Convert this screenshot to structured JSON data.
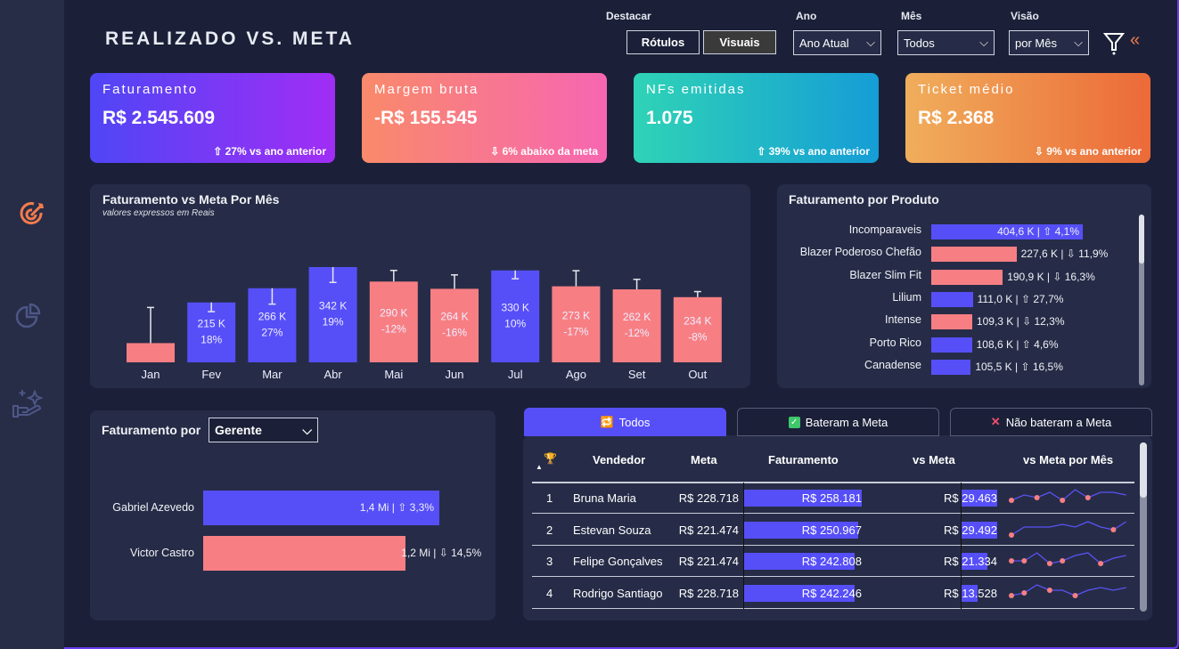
{
  "header": {
    "title": "REALIZADO VS. META"
  },
  "filters": {
    "destacar_label": "Destacar",
    "rotulos": "Rótulos",
    "visuais": "Visuais",
    "ano_label": "Ano",
    "ano_value": "Ano Atual",
    "mes_label": "Mês",
    "mes_value": "Todos",
    "visao_label": "Visão",
    "visao_value": "por Mês"
  },
  "icons": {
    "sidebar": [
      "target-icon",
      "pie-chart-icon",
      "hand-sparkle-icon"
    ],
    "filter": "filter-icon",
    "collapse": "double-chevron-left-icon"
  },
  "kpis": [
    {
      "title": "Faturamento",
      "value": "R$ 2.545.609",
      "sub": "⇧ 27% vs ano anterior",
      "gradient": [
        "#4f46f5",
        "#a12df5"
      ]
    },
    {
      "title": "Margem bruta",
      "value": "-R$ 155.545",
      "sub": "⇩ 6% abaixo da meta",
      "gradient": [
        "#f98a6a",
        "#f766b2"
      ]
    },
    {
      "title": "NFs emitidas",
      "value": "1.075",
      "sub": "⇧ 39% vs ano anterior",
      "gradient": [
        "#2fd3b6",
        "#159dd6"
      ]
    },
    {
      "title": "Ticket médio",
      "value": "R$ 2.368",
      "sub": "⇩ 9% vs ano anterior",
      "gradient": [
        "#f0ae5c",
        "#ec6a38"
      ]
    }
  ],
  "colors": {
    "above": "#564ff8",
    "below": "#f77f84",
    "line": "#5a52f5"
  },
  "chart_data": [
    {
      "type": "bar",
      "title": "Faturamento vs Meta Por Mês",
      "subtitle": "valores expressos em Reais",
      "categories": [
        "Jan",
        "Fev",
        "Mar",
        "Abr",
        "Mai",
        "Jun",
        "Jul",
        "Ago",
        "Set",
        "Out"
      ],
      "values": [
        69,
        215,
        266,
        342,
        290,
        264,
        330,
        273,
        262,
        234
      ],
      "value_labels": [
        "",
        "215 K",
        "266 K",
        "342 K",
        "290 K",
        "264 K",
        "330 K",
        "273 K",
        "262 K",
        "234 K"
      ],
      "pct_labels": [
        "",
        "18%",
        "27%",
        "19%",
        "-12%",
        "-16%",
        "10%",
        "-17%",
        "-12%",
        "-8%"
      ],
      "meta": [
        197,
        182,
        209,
        287,
        330,
        314,
        300,
        329,
        298,
        254
      ],
      "unit": "K",
      "ylim": [
        0,
        360
      ]
    },
    {
      "type": "bar",
      "orientation": "horizontal",
      "title": "Faturamento por Produto",
      "categories": [
        "Incomparaveis",
        "Blazer Poderoso Chefão",
        "Blazer Slim Fit",
        "Lilium",
        "Intense",
        "Porto Rico",
        "Canadense"
      ],
      "values": [
        404.6,
        227.6,
        190.9,
        111.0,
        109.3,
        108.6,
        105.5
      ],
      "labels": [
        "404,6 K | ⇧ 4,1%",
        "227,6 K | ⇩ 11,9%",
        "190,9 K | ⇩ 16,3%",
        "111,0 K | ⇧ 27,7%",
        "109,3 K | ⇩ 12,3%",
        "108,6 K | ⇧ 4,6%",
        "105,5 K | ⇧ 16,5%"
      ],
      "above": [
        true,
        false,
        false,
        true,
        false,
        true,
        true
      ]
    },
    {
      "type": "bar",
      "orientation": "horizontal",
      "title": "Faturamento por",
      "dropdown": "Gerente",
      "categories": [
        "Gabriel Azevedo",
        "Victor Castro"
      ],
      "values": [
        1.4,
        1.2
      ],
      "labels": [
        "1,4 Mi | ⇧ 3,3%",
        "1,2 Mi | ⇩ 14,5%"
      ],
      "above": [
        true,
        false
      ]
    }
  ],
  "table": {
    "tabs": [
      "Todos",
      "Bateram a Meta",
      "Não bateram a Meta"
    ],
    "columns": [
      "Vendedor",
      "Meta",
      "Faturamento",
      "vs Meta",
      "vs Meta por Mês"
    ],
    "rows": [
      {
        "rank": "1",
        "name": "Bruna Maria",
        "meta": "R$ 228.718",
        "fat": "R$ 258.181",
        "fat_v": 258181,
        "vs": "R$ 29.463",
        "vs_v": 29463,
        "spark": [
          2,
          4,
          3,
          5,
          2,
          6,
          3,
          5,
          5,
          4
        ],
        "dots": [
          0,
          2,
          4,
          6
        ]
      },
      {
        "rank": "2",
        "name": "Estevan Souza",
        "meta": "R$ 221.474",
        "fat": "R$ 250.967",
        "fat_v": 250967,
        "vs": "R$ 29.492",
        "vs_v": 29492,
        "spark": [
          1,
          4,
          4,
          4,
          5,
          4,
          6,
          4,
          3,
          6
        ],
        "dots": [
          0,
          8
        ]
      },
      {
        "rank": "3",
        "name": "Felipe Gonçalves",
        "meta": "R$ 221.474",
        "fat": "R$ 242.808",
        "fat_v": 242808,
        "vs": "R$ 21.334",
        "vs_v": 21334,
        "spark": [
          3,
          3,
          6,
          2,
          3,
          5,
          6,
          2,
          4,
          5
        ],
        "dots": [
          0,
          1,
          3,
          4,
          7
        ]
      },
      {
        "rank": "4",
        "name": "Rodrigo Santiago",
        "meta": "R$ 228.718",
        "fat": "R$ 242.246",
        "fat_v": 242246,
        "vs": "R$ 13.528",
        "vs_v": 13528,
        "spark": [
          2,
          3,
          6,
          4,
          4,
          2,
          4,
          5,
          4,
          5
        ],
        "dots": [
          0,
          1,
          3,
          5
        ]
      }
    ]
  }
}
